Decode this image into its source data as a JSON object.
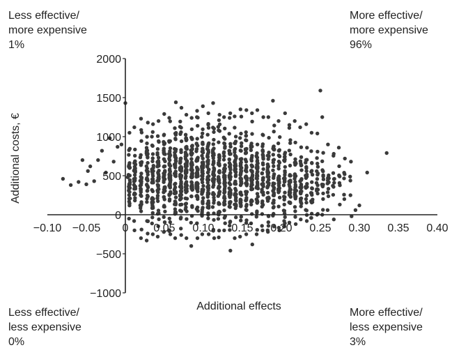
{
  "quadrants": {
    "top_left": {
      "line1": "Less effective/",
      "line2": "more expensive",
      "pct": "1%"
    },
    "top_right": {
      "line1": "More effective/",
      "line2": "more expensive",
      "pct": "96%"
    },
    "bottom_left": {
      "line1": "Less effective/",
      "line2": "less expensive",
      "pct": "0%"
    },
    "bottom_right": {
      "line1": "More effective/",
      "line2": "less expensive",
      "pct": "3%"
    }
  },
  "chart_data": {
    "type": "scatter",
    "title": "",
    "xlabel": "Additional effects",
    "ylabel": "Additional costs, €",
    "xlim": [
      -0.1,
      0.4
    ],
    "ylim": [
      -1000,
      2000
    ],
    "x_ticks": [
      "−0.10",
      "−0.05",
      "0",
      "0.05",
      "0.10",
      "0.15",
      "0.20",
      "0.25",
      "0.30",
      "0.35",
      "0.40"
    ],
    "x_tick_values": [
      -0.1,
      -0.05,
      0,
      0.05,
      0.1,
      0.15,
      0.2,
      0.25,
      0.3,
      0.35,
      0.4
    ],
    "y_ticks": [
      "2000",
      "1500",
      "1000",
      "500",
      "0",
      "−500",
      "−1000"
    ],
    "y_tick_values": [
      2000,
      1500,
      1000,
      500,
      0,
      -500,
      -1000
    ],
    "grid": false,
    "point_color": "#3a3a3a",
    "series": [
      {
        "x": [
          -0.08,
          -0.07,
          -0.06,
          -0.055,
          -0.05,
          -0.048,
          -0.045,
          -0.04,
          -0.035,
          -0.03,
          -0.025,
          -0.02,
          -0.015,
          -0.01,
          -0.005,
          0.0,
          0.003,
          0.3,
          0.335,
          0.31,
          0.295,
          0.29,
          0.25
        ],
        "y": [
          460,
          380,
          420,
          700,
          390,
          560,
          620,
          430,
          700,
          820,
          540,
          980,
          680,
          870,
          900,
          1430,
          480,
          120,
          790,
          540,
          60,
          -20,
          1590
        ]
      }
    ],
    "columns": [
      {
        "x": 0.005,
        "n": 30,
        "y_min": -50,
        "y_max": 1050,
        "y_center": 430
      },
      {
        "x": 0.012,
        "n": 34,
        "y_min": -200,
        "y_max": 1120,
        "y_center": 440
      },
      {
        "x": 0.02,
        "n": 38,
        "y_min": -300,
        "y_max": 1230,
        "y_center": 450
      },
      {
        "x": 0.028,
        "n": 40,
        "y_min": -330,
        "y_max": 1180,
        "y_center": 450
      },
      {
        "x": 0.035,
        "n": 42,
        "y_min": -250,
        "y_max": 1160,
        "y_center": 460
      },
      {
        "x": 0.042,
        "n": 46,
        "y_min": -280,
        "y_max": 1200,
        "y_center": 470
      },
      {
        "x": 0.05,
        "n": 50,
        "y_min": -220,
        "y_max": 1290,
        "y_center": 480
      },
      {
        "x": 0.057,
        "n": 52,
        "y_min": -250,
        "y_max": 1240,
        "y_center": 480
      },
      {
        "x": 0.064,
        "n": 54,
        "y_min": -300,
        "y_max": 1440,
        "y_center": 490
      },
      {
        "x": 0.071,
        "n": 56,
        "y_min": -260,
        "y_max": 1370,
        "y_center": 500
      },
      {
        "x": 0.078,
        "n": 56,
        "y_min": -300,
        "y_max": 1280,
        "y_center": 500
      },
      {
        "x": 0.085,
        "n": 56,
        "y_min": -400,
        "y_max": 1240,
        "y_center": 500
      },
      {
        "x": 0.092,
        "n": 56,
        "y_min": -300,
        "y_max": 1330,
        "y_center": 510
      },
      {
        "x": 0.099,
        "n": 56,
        "y_min": -250,
        "y_max": 1390,
        "y_center": 510
      },
      {
        "x": 0.106,
        "n": 56,
        "y_min": -250,
        "y_max": 1300,
        "y_center": 510
      },
      {
        "x": 0.113,
        "n": 54,
        "y_min": -300,
        "y_max": 1430,
        "y_center": 510
      },
      {
        "x": 0.12,
        "n": 54,
        "y_min": -290,
        "y_max": 1280,
        "y_center": 510
      },
      {
        "x": 0.127,
        "n": 52,
        "y_min": -200,
        "y_max": 1250,
        "y_center": 510
      },
      {
        "x": 0.134,
        "n": 52,
        "y_min": -460,
        "y_max": 1300,
        "y_center": 510
      },
      {
        "x": 0.141,
        "n": 50,
        "y_min": -300,
        "y_max": 1260,
        "y_center": 500
      },
      {
        "x": 0.148,
        "n": 48,
        "y_min": -280,
        "y_max": 1350,
        "y_center": 500
      },
      {
        "x": 0.155,
        "n": 48,
        "y_min": -250,
        "y_max": 1340,
        "y_center": 500
      },
      {
        "x": 0.162,
        "n": 46,
        "y_min": -380,
        "y_max": 1300,
        "y_center": 500
      },
      {
        "x": 0.169,
        "n": 44,
        "y_min": -250,
        "y_max": 1340,
        "y_center": 490
      },
      {
        "x": 0.176,
        "n": 42,
        "y_min": -200,
        "y_max": 1250,
        "y_center": 490
      },
      {
        "x": 0.183,
        "n": 40,
        "y_min": -220,
        "y_max": 1250,
        "y_center": 480
      },
      {
        "x": 0.19,
        "n": 38,
        "y_min": -150,
        "y_max": 1460,
        "y_center": 470
      },
      {
        "x": 0.197,
        "n": 36,
        "y_min": -200,
        "y_max": 1200,
        "y_center": 470
      },
      {
        "x": 0.204,
        "n": 34,
        "y_min": -150,
        "y_max": 1300,
        "y_center": 460
      },
      {
        "x": 0.211,
        "n": 32,
        "y_min": -100,
        "y_max": 1150,
        "y_center": 450
      },
      {
        "x": 0.218,
        "n": 30,
        "y_min": -120,
        "y_max": 1200,
        "y_center": 450
      },
      {
        "x": 0.225,
        "n": 28,
        "y_min": -60,
        "y_max": 1120,
        "y_center": 440
      },
      {
        "x": 0.232,
        "n": 24,
        "y_min": -80,
        "y_max": 1160,
        "y_center": 430
      },
      {
        "x": 0.239,
        "n": 22,
        "y_min": -40,
        "y_max": 1050,
        "y_center": 420
      },
      {
        "x": 0.246,
        "n": 18,
        "y_min": 0,
        "y_max": 1040,
        "y_center": 420
      },
      {
        "x": 0.253,
        "n": 16,
        "y_min": 0,
        "y_max": 1250,
        "y_center": 420
      },
      {
        "x": 0.26,
        "n": 12,
        "y_min": 60,
        "y_max": 900,
        "y_center": 400
      },
      {
        "x": 0.267,
        "n": 10,
        "y_min": -60,
        "y_max": 780,
        "y_center": 380
      },
      {
        "x": 0.274,
        "n": 8,
        "y_min": 130,
        "y_max": 860,
        "y_center": 400
      },
      {
        "x": 0.281,
        "n": 6,
        "y_min": 200,
        "y_max": 720,
        "y_center": 420
      },
      {
        "x": 0.289,
        "n": 4,
        "y_min": 250,
        "y_max": 680,
        "y_center": 420
      }
    ]
  }
}
